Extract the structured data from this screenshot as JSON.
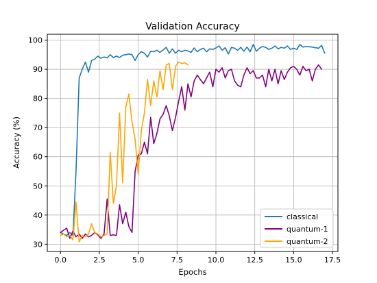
{
  "chart_data": {
    "type": "line",
    "title": "Validation Accuracy",
    "xlabel": "Epochs",
    "ylabel": "Accuracy (%)",
    "xlim": [
      -0.85,
      17.85
    ],
    "ylim": [
      27.5,
      102.0
    ],
    "xticks": [
      0.0,
      2.5,
      5.0,
      7.5,
      10.0,
      12.5,
      15.0,
      17.5
    ],
    "xtick_labels": [
      "0.0",
      "2.5",
      "5.0",
      "7.5",
      "10.0",
      "12.5",
      "15.0",
      "17.5"
    ],
    "yticks": [
      30,
      40,
      50,
      60,
      70,
      80,
      90,
      100
    ],
    "ytick_labels": [
      "30",
      "40",
      "50",
      "60",
      "70",
      "80",
      "90",
      "100"
    ],
    "grid": true,
    "legend_position": "lower-right",
    "series": [
      {
        "name": "classical",
        "color": "#1f77b4",
        "x": [
          0,
          0.2,
          0.4,
          0.6,
          0.8,
          1.0,
          1.2,
          1.4,
          1.6,
          1.8,
          2.0,
          2.2,
          2.4,
          2.6,
          2.8,
          3.0,
          3.2,
          3.4,
          3.6,
          3.8,
          4.0,
          4.2,
          4.4,
          4.6,
          4.8,
          5.0,
          5.2,
          5.4,
          5.6,
          5.8,
          6.0,
          6.2,
          6.4,
          6.6,
          6.8,
          7.0,
          7.2,
          7.4,
          7.6,
          7.8,
          8.0,
          8.2,
          8.4,
          8.6,
          8.8,
          9.0,
          9.2,
          9.4,
          9.6,
          9.8,
          10.0,
          10.2,
          10.4,
          10.6,
          10.8,
          11.0,
          11.2,
          11.4,
          11.6,
          11.8,
          12.0,
          12.2,
          12.4,
          12.6,
          12.8,
          13.0,
          13.2,
          13.4,
          13.6,
          13.8,
          14.0,
          14.2,
          14.4,
          14.6,
          14.8,
          15.0,
          15.2,
          15.4,
          15.6,
          15.8,
          16.0,
          16.2,
          16.4,
          16.6,
          16.8,
          17.0
        ],
        "y": [
          34.0,
          33.5,
          33.0,
          34.0,
          33.0,
          55.0,
          87.0,
          90.0,
          92.5,
          89.0,
          93.0,
          93.5,
          94.5,
          93.8,
          94.2,
          93.9,
          95.0,
          94.0,
          94.5,
          94.0,
          94.8,
          95.0,
          95.2,
          95.0,
          93.0,
          95.0,
          96.0,
          95.5,
          94.2,
          96.2,
          96.0,
          96.5,
          95.8,
          96.6,
          97.5,
          95.5,
          97.0,
          95.5,
          96.5,
          96.0,
          96.5,
          96.3,
          95.8,
          97.3,
          96.0,
          96.8,
          97.2,
          96.0,
          97.0,
          96.8,
          97.3,
          98.0,
          96.5,
          97.4,
          95.2,
          97.5,
          97.2,
          96.5,
          97.5,
          96.2,
          97.6,
          96.0,
          98.5,
          96.2,
          97.2,
          97.8,
          97.5,
          96.8,
          97.2,
          98.0,
          97.0,
          97.5,
          97.2,
          98.0,
          96.8,
          97.2,
          96.8,
          98.5,
          97.6,
          97.8,
          97.7,
          97.6,
          97.4,
          97.2,
          98.2,
          95.5
        ]
      },
      {
        "name": "quantum-1",
        "color": "#800080",
        "x": [
          0,
          0.2,
          0.4,
          0.6,
          0.8,
          1.0,
          1.2,
          1.4,
          1.6,
          1.8,
          2.0,
          2.2,
          2.4,
          2.6,
          2.8,
          3.0,
          3.2,
          3.4,
          3.6,
          3.8,
          4.0,
          4.2,
          4.4,
          4.6,
          4.8,
          5.0,
          5.2,
          5.4,
          5.6,
          5.8,
          6.0,
          6.2,
          6.4,
          6.6,
          6.8,
          7.0,
          7.2,
          7.4,
          7.6,
          7.8,
          8.0,
          8.2,
          8.4,
          8.6,
          8.8,
          9.0,
          9.2,
          9.4,
          9.6,
          9.8,
          10.0,
          10.2,
          10.4,
          10.6,
          10.8,
          11.0,
          11.2,
          11.4,
          11.6,
          11.8,
          12.0,
          12.2,
          12.4,
          12.6,
          12.8,
          13.0,
          13.2,
          13.4,
          13.6,
          13.8,
          14.0,
          14.2,
          14.4,
          14.6,
          14.8,
          15.0,
          15.2,
          15.4,
          15.6,
          15.8,
          16.0,
          16.2,
          16.4,
          16.6,
          16.8
        ],
        "y": [
          34.0,
          34.8,
          35.5,
          32.0,
          34.5,
          32.5,
          33.5,
          32.0,
          33.5,
          32.5,
          33.0,
          34.0,
          33.2,
          32.0,
          33.5,
          45.5,
          33.0,
          33.2,
          33.0,
          43.5,
          37.0,
          41.0,
          36.0,
          34.0,
          55.0,
          60.5,
          61.0,
          65.0,
          61.0,
          73.5,
          64.5,
          68.0,
          73.0,
          74.5,
          77.5,
          74.0,
          69.0,
          73.5,
          79.0,
          84.0,
          76.0,
          85.0,
          80.5,
          86.0,
          88.0,
          86.5,
          85.0,
          87.0,
          89.0,
          84.0,
          90.0,
          89.0,
          90.5,
          87.0,
          89.5,
          90.0,
          86.0,
          84.5,
          84.0,
          88.0,
          90.5,
          88.5,
          89.5,
          87.0,
          87.0,
          88.0,
          84.0,
          90.0,
          86.0,
          90.0,
          85.0,
          89.5,
          86.5,
          89.0,
          90.5,
          91.0,
          90.0,
          88.0,
          91.0,
          89.5,
          90.0,
          86.0,
          90.0,
          91.5,
          90.0
        ]
      },
      {
        "name": "quantum-2",
        "color": "#ffa500",
        "x": [
          0,
          0.2,
          0.4,
          0.6,
          0.8,
          1.0,
          1.2,
          1.4,
          1.6,
          1.8,
          2.0,
          2.2,
          2.4,
          2.6,
          2.8,
          3.0,
          3.2,
          3.4,
          3.6,
          3.8,
          4.0,
          4.2,
          4.4,
          4.6,
          4.8,
          5.0,
          5.2,
          5.4,
          5.6,
          5.8,
          6.0,
          6.2,
          6.4,
          6.6,
          6.8,
          7.0,
          7.2,
          7.4,
          7.6,
          7.8,
          8.0,
          8.2
        ],
        "y": [
          33.0,
          33.5,
          32.5,
          33.0,
          31.5,
          44.5,
          30.8,
          33.0,
          32.5,
          33.5,
          37.0,
          34.0,
          33.5,
          32.5,
          33.0,
          33.5,
          61.5,
          44.0,
          50.0,
          75.0,
          51.0,
          77.0,
          81.5,
          72.0,
          66.0,
          54.0,
          69.0,
          75.0,
          86.5,
          77.5,
          86.0,
          80.5,
          89.5,
          83.0,
          91.5,
          92.0,
          83.0,
          91.0,
          92.5,
          92.0,
          92.2,
          91.5
        ]
      }
    ]
  }
}
